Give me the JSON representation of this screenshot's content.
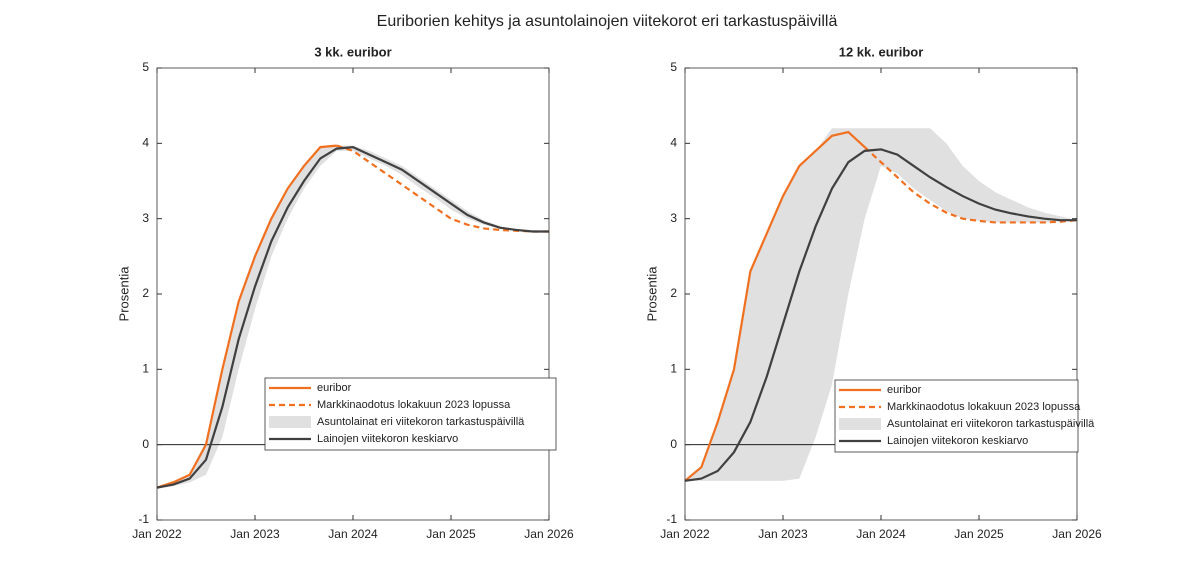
{
  "title": "Euriborien kehitys ja asuntolainojen viitekorot eri tarkastuspäivillä",
  "chart_data": [
    {
      "type": "line",
      "title": "3 kk. euribor",
      "y_label": "Prosentia",
      "legend": "lower right",
      "x": [
        "2022-01",
        "2022-03",
        "2022-05",
        "2022-07",
        "2022-09",
        "2022-11",
        "2023-01",
        "2023-03",
        "2023-05",
        "2023-07",
        "2023-09",
        "2023-11",
        "2024-01",
        "2024-03",
        "2024-05",
        "2024-07",
        "2024-09",
        "2024-11",
        "2025-01",
        "2025-03",
        "2025-05",
        "2025-07",
        "2025-09",
        "2025-11",
        "2026-01"
      ],
      "xlim": [
        "2022-01",
        "2026-01"
      ],
      "xticks": [
        {
          "value": "2022-01",
          "label": "Jan 2022"
        },
        {
          "value": "2023-01",
          "label": "Jan 2023"
        },
        {
          "value": "2024-01",
          "label": "Jan 2024"
        },
        {
          "value": "2025-01",
          "label": "Jan 2025"
        },
        {
          "value": "2026-01",
          "label": "Jan 2026"
        }
      ],
      "ylim": [
        -1,
        5
      ],
      "yticks": [
        -1,
        0,
        1,
        2,
        3,
        4,
        5
      ],
      "series": [
        {
          "name": "euribor",
          "color": "#f07020",
          "style": "solid",
          "values": [
            -0.57,
            -0.5,
            -0.4,
            0.0,
            1.0,
            1.9,
            2.5,
            3.0,
            3.4,
            3.7,
            3.95,
            3.97,
            null,
            null,
            null,
            null,
            null,
            null,
            null,
            null,
            null,
            null,
            null,
            null,
            null
          ]
        },
        {
          "name": "Markkinaodotus lokakuun 2023 lopussa",
          "color": "#f07020",
          "style": "dashed",
          "values": [
            null,
            null,
            null,
            null,
            null,
            null,
            null,
            null,
            null,
            null,
            null,
            3.97,
            3.9,
            3.75,
            3.6,
            3.45,
            3.3,
            3.15,
            3.0,
            2.92,
            2.87,
            2.85,
            2.84,
            2.83,
            2.83
          ]
        },
        {
          "name": "Asuntolainat eri viitekoron tarkastuspäivillä",
          "color": "#e0e0e0",
          "style": "band",
          "lower": [
            -0.57,
            -0.55,
            -0.5,
            -0.4,
            0.1,
            1.0,
            1.8,
            2.5,
            3.0,
            3.4,
            3.7,
            3.9,
            3.9,
            3.8,
            3.7,
            3.58,
            3.42,
            3.28,
            3.12,
            3.0,
            2.92,
            2.87,
            2.84,
            2.83,
            2.83
          ],
          "upper": [
            -0.57,
            -0.5,
            -0.4,
            0.05,
            1.0,
            1.9,
            2.5,
            3.0,
            3.4,
            3.7,
            3.95,
            3.97,
            3.97,
            3.9,
            3.8,
            3.7,
            3.55,
            3.4,
            3.25,
            3.1,
            2.98,
            2.9,
            2.86,
            2.84,
            2.83
          ]
        },
        {
          "name": "Lainojen viitekoron keskiarvo",
          "color": "#404040",
          "style": "solid",
          "values": [
            -0.57,
            -0.53,
            -0.45,
            -0.2,
            0.5,
            1.4,
            2.1,
            2.7,
            3.15,
            3.5,
            3.8,
            3.93,
            3.95,
            3.85,
            3.75,
            3.65,
            3.5,
            3.35,
            3.2,
            3.05,
            2.95,
            2.88,
            2.85,
            2.83,
            2.83
          ]
        }
      ]
    },
    {
      "type": "line",
      "title": "12 kk. euribor",
      "y_label": "Prosentia",
      "legend": "lower right",
      "x": [
        "2022-01",
        "2022-03",
        "2022-05",
        "2022-07",
        "2022-09",
        "2022-11",
        "2023-01",
        "2023-03",
        "2023-05",
        "2023-07",
        "2023-09",
        "2023-11",
        "2024-01",
        "2024-03",
        "2024-05",
        "2024-07",
        "2024-09",
        "2024-11",
        "2025-01",
        "2025-03",
        "2025-05",
        "2025-07",
        "2025-09",
        "2025-11",
        "2026-01"
      ],
      "xlim": [
        "2022-01",
        "2026-01"
      ],
      "xticks": [
        {
          "value": "2022-01",
          "label": "Jan 2022"
        },
        {
          "value": "2023-01",
          "label": "Jan 2023"
        },
        {
          "value": "2024-01",
          "label": "Jan 2024"
        },
        {
          "value": "2025-01",
          "label": "Jan 2025"
        },
        {
          "value": "2026-01",
          "label": "Jan 2026"
        }
      ],
      "ylim": [
        -1,
        5
      ],
      "yticks": [
        -1,
        0,
        1,
        2,
        3,
        4,
        5
      ],
      "series": [
        {
          "name": "euribor",
          "color": "#f07020",
          "style": "solid",
          "values": [
            -0.48,
            -0.3,
            0.3,
            1.0,
            2.3,
            2.8,
            3.3,
            3.7,
            3.9,
            4.1,
            4.15,
            3.95,
            null,
            null,
            null,
            null,
            null,
            null,
            null,
            null,
            null,
            null,
            null,
            null,
            null
          ]
        },
        {
          "name": "Markkinaodotus lokakuun 2023 lopussa",
          "color": "#f07020",
          "style": "dashed",
          "values": [
            null,
            null,
            null,
            null,
            null,
            null,
            null,
            null,
            null,
            null,
            null,
            3.95,
            3.75,
            3.55,
            3.35,
            3.2,
            3.08,
            3.0,
            2.97,
            2.95,
            2.95,
            2.95,
            2.95,
            2.96,
            2.98
          ]
        },
        {
          "name": "Asuntolainat eri viitekoron tarkastuspäivillä",
          "color": "#e0e0e0",
          "style": "band",
          "lower": [
            -0.48,
            -0.48,
            -0.48,
            -0.48,
            -0.48,
            -0.48,
            -0.48,
            -0.45,
            0.1,
            0.8,
            2.0,
            3.0,
            3.7,
            3.6,
            3.4,
            3.25,
            3.1,
            3.0,
            2.97,
            2.95,
            2.95,
            2.95,
            2.95,
            2.96,
            2.98
          ],
          "upper": [
            -0.48,
            -0.3,
            0.3,
            1.0,
            2.3,
            2.8,
            3.3,
            3.7,
            3.9,
            4.2,
            4.2,
            4.2,
            4.2,
            4.2,
            4.2,
            4.2,
            4.0,
            3.7,
            3.5,
            3.35,
            3.25,
            3.15,
            3.08,
            3.03,
            2.98
          ]
        },
        {
          "name": "Lainojen viitekoron keskiarvo",
          "color": "#404040",
          "style": "solid",
          "values": [
            -0.48,
            -0.45,
            -0.35,
            -0.1,
            0.3,
            0.9,
            1.6,
            2.3,
            2.9,
            3.4,
            3.75,
            3.9,
            3.92,
            3.85,
            3.7,
            3.55,
            3.42,
            3.3,
            3.2,
            3.12,
            3.07,
            3.03,
            3.0,
            2.98,
            2.98
          ]
        }
      ]
    }
  ]
}
